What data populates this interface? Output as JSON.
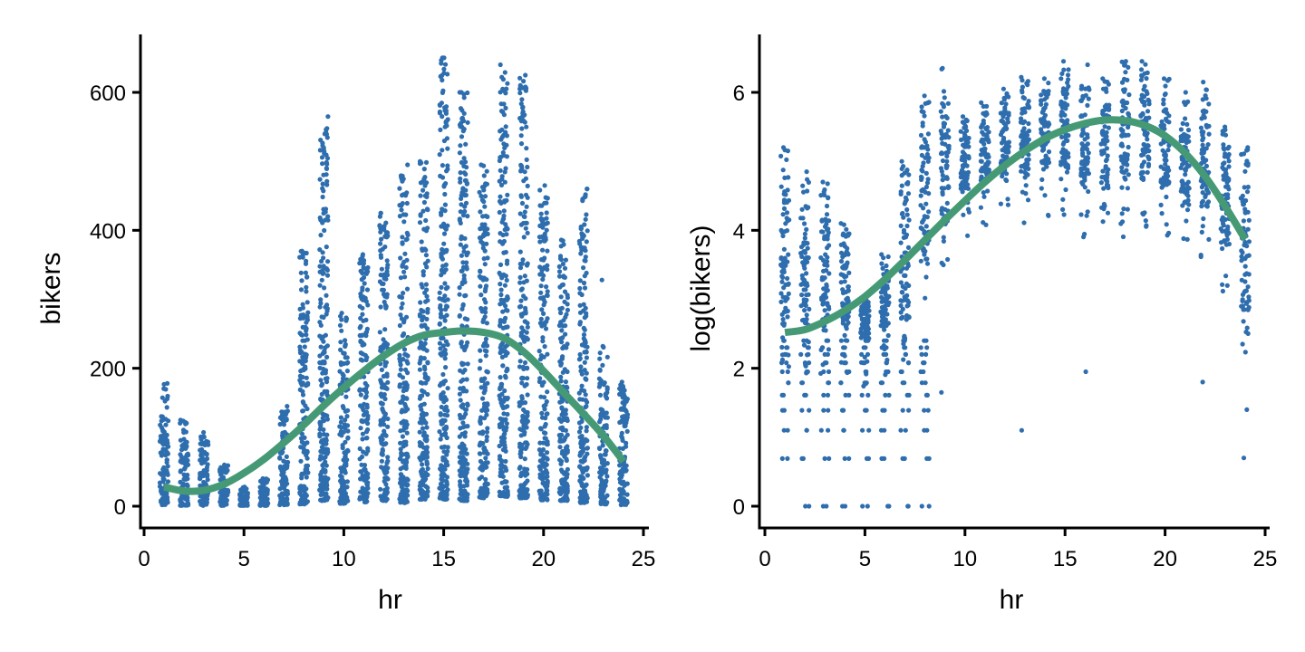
{
  "colors": {
    "points": "#2E6EAE",
    "smooth": "#459A75",
    "axis": "#000000",
    "background": "#FFFFFF"
  },
  "chart_data": [
    {
      "type": "scatter",
      "title": "",
      "xlabel": "hr",
      "ylabel": "bikers",
      "xlim": [
        0,
        25
      ],
      "ylim": [
        -30,
        680
      ],
      "xticks": [
        0,
        5,
        10,
        15,
        20,
        25
      ],
      "xtick_labels": [
        "0",
        "5",
        "10",
        "15",
        "20",
        "25"
      ],
      "yticks": [
        0,
        200,
        400,
        600
      ],
      "ytick_labels": [
        "0",
        "200",
        "400",
        "600"
      ],
      "grid": false,
      "legend": "none",
      "jitter": true,
      "series": [
        {
          "name": "observations",
          "kind": "jittered-points",
          "hours": [
            1,
            2,
            3,
            4,
            5,
            6,
            7,
            8,
            9,
            10,
            11,
            12,
            13,
            14,
            15,
            16,
            17,
            18,
            19,
            20,
            21,
            22,
            23,
            24
          ],
          "min": [
            2,
            1,
            1,
            1,
            1,
            1,
            2,
            3,
            8,
            4,
            6,
            8,
            5,
            10,
            10,
            8,
            12,
            14,
            12,
            9,
            8,
            5,
            3,
            2
          ],
          "max": [
            178,
            125,
            107,
            60,
            28,
            40,
            145,
            370,
            565,
            280,
            365,
            425,
            495,
            500,
            650,
            600,
            495,
            640,
            625,
            465,
            385,
            460,
            232,
            180
          ],
          "outliers": [
            [
              15,
              650
            ],
            [
              16,
              600
            ],
            [
              22,
              460
            ],
            [
              23,
              328
            ],
            [
              22,
              327
            ],
            [
              21,
              386
            ]
          ]
        },
        {
          "name": "smooth fit",
          "kind": "line",
          "x": [
            1,
            2,
            3,
            4,
            5,
            6,
            7,
            8,
            9,
            10,
            11,
            12,
            13,
            14,
            15,
            16,
            17,
            18,
            19,
            20,
            21,
            22,
            23,
            24
          ],
          "y": [
            28,
            22,
            23,
            32,
            48,
            68,
            92,
            118,
            146,
            172,
            196,
            218,
            236,
            248,
            252,
            254,
            252,
            244,
            224,
            196,
            165,
            134,
            102,
            65
          ]
        }
      ]
    },
    {
      "type": "scatter",
      "title": "",
      "xlabel": "hr",
      "ylabel": "log(bikers)",
      "xlim": [
        0,
        25
      ],
      "ylim": [
        -0.3,
        6.8
      ],
      "xticks": [
        0,
        5,
        10,
        15,
        20,
        25
      ],
      "xtick_labels": [
        "0",
        "5",
        "10",
        "15",
        "20",
        "25"
      ],
      "yticks": [
        0,
        2,
        4,
        6
      ],
      "ytick_labels": [
        "0",
        "2",
        "4",
        "6"
      ],
      "grid": false,
      "legend": "none",
      "jitter": true,
      "series": [
        {
          "name": "observations",
          "kind": "jittered-points",
          "hours": [
            1,
            2,
            3,
            4,
            5,
            6,
            7,
            8,
            9,
            10,
            11,
            12,
            13,
            14,
            15,
            16,
            17,
            18,
            19,
            20,
            21,
            22,
            23,
            24
          ],
          "dense_min": [
            2.6,
            2.6,
            2.6,
            2.6,
            2.4,
            2.6,
            2.7,
            3.6,
            4.1,
            4.6,
            4.7,
            4.8,
            4.8,
            4.9,
            4.9,
            4.6,
            4.6,
            4.6,
            4.7,
            4.6,
            4.4,
            4.3,
            3.8,
            2.8
          ],
          "max": [
            5.2,
            4.85,
            4.7,
            4.1,
            3.0,
            3.65,
            5.0,
            5.95,
            6.35,
            5.65,
            5.85,
            6.05,
            6.22,
            6.2,
            6.45,
            6.4,
            6.2,
            6.45,
            6.45,
            6.2,
            6.0,
            6.15,
            5.5,
            5.2
          ],
          "discrete_low_values": [
            0,
            0.69,
            1.1,
            1.39,
            1.61,
            1.79,
            1.95,
            2.08,
            2.2,
            2.3,
            2.4
          ],
          "discrete_low_hours": [
            1,
            2,
            3,
            4,
            5,
            6,
            7,
            8
          ],
          "zero_hours": [
            2,
            3,
            4,
            5,
            6,
            7,
            8
          ],
          "outliers": [
            [
              13,
              1.1
            ],
            [
              16,
              1.95
            ],
            [
              24,
              0.7
            ],
            [
              24,
              1.4
            ],
            [
              22,
              1.8
            ],
            [
              9,
              1.65
            ]
          ]
        },
        {
          "name": "smooth fit",
          "kind": "line",
          "x": [
            1,
            2,
            3,
            4,
            5,
            6,
            7,
            8,
            9,
            10,
            11,
            12,
            13,
            14,
            15,
            16,
            17,
            18,
            19,
            20,
            21,
            22,
            23,
            24
          ],
          "y": [
            2.52,
            2.56,
            2.68,
            2.84,
            3.04,
            3.29,
            3.57,
            3.86,
            4.15,
            4.43,
            4.7,
            4.94,
            5.15,
            5.33,
            5.46,
            5.55,
            5.6,
            5.59,
            5.52,
            5.37,
            5.12,
            4.78,
            4.35,
            3.87
          ]
        }
      ]
    }
  ]
}
